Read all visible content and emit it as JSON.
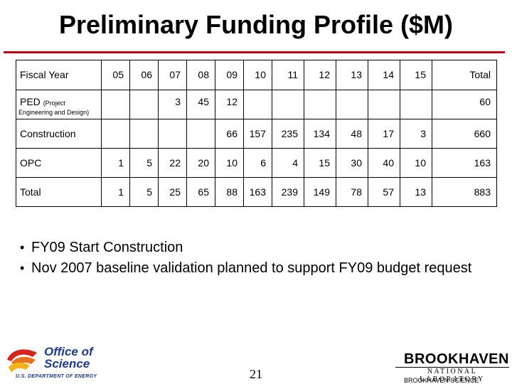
{
  "slide": {
    "title": "Preliminary Funding Profile ($M)",
    "page_number": "21",
    "accent_color": "#c0000f"
  },
  "table": {
    "header": [
      "Fiscal Year",
      "05",
      "06",
      "07",
      "08",
      "09",
      "10",
      "11",
      "12",
      "13",
      "14",
      "15",
      "Total"
    ],
    "ped": {
      "label": "PED",
      "note": "(Project",
      "note2": "Engineering and Design)",
      "values": [
        "",
        "",
        "3",
        "45",
        "12",
        "",
        "",
        "",
        "",
        "",
        "",
        "60"
      ]
    },
    "construction": {
      "label": "Construction",
      "values": [
        "",
        "",
        "",
        "",
        "66",
        "157",
        "235",
        "134",
        "48",
        "17",
        "3",
        "660"
      ]
    },
    "opc": {
      "label": "OPC",
      "values": [
        "1",
        "5",
        "22",
        "20",
        "10",
        "6",
        "4",
        "15",
        "30",
        "40",
        "10",
        "163"
      ]
    },
    "total": {
      "label": "Total",
      "values": [
        "1",
        "5",
        "25",
        "65",
        "88",
        "163",
        "239",
        "149",
        "78",
        "57",
        "13",
        "883"
      ]
    }
  },
  "bullets": [
    "FY09 Start Construction",
    "Nov 2007 baseline validation planned to support FY09 budget request"
  ],
  "logos": {
    "doe_title_line1": "Office of",
    "doe_title_line2": "Science",
    "doe_subtitle": "U.S. DEPARTMENT OF ENERGY",
    "bnl_name": "BROOKHAVEN",
    "bnl_subtitle": "NATIONAL LABORATORY",
    "bnl_assoc": "BROOKHAVEN SCIENCE"
  }
}
